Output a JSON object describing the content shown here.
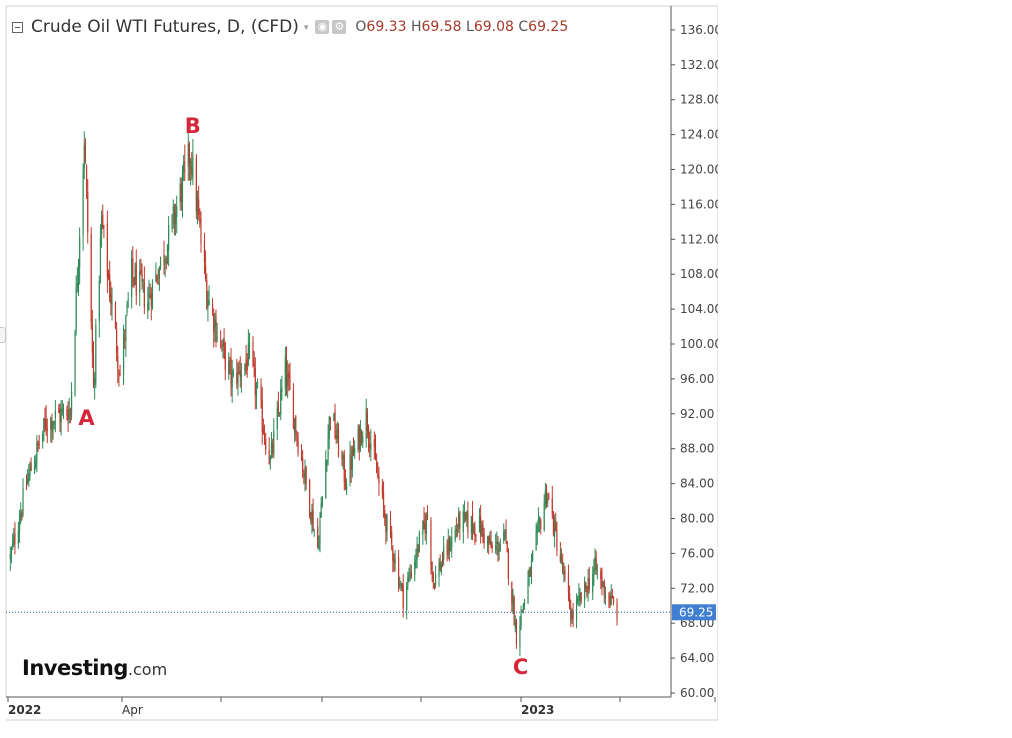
{
  "legend": {
    "title": "Crude Oil WTI Futures, D, (CFD)",
    "caret": "▾",
    "icons": [
      "settings-icon",
      "gear-icon"
    ],
    "open_label": "O",
    "open_value": "69.33",
    "high_label": "H",
    "high_value": "69.58",
    "low_label": "L",
    "low_value": "69.08",
    "close_label": "C",
    "close_value": "69.25"
  },
  "logo": {
    "brand": "Investing",
    "tld": ".com"
  },
  "annotations": [
    {
      "text": "A",
      "x": "2022-03-09",
      "y": 91.5
    },
    {
      "text": "B",
      "x": "2022-06-09",
      "y": 125.0
    },
    {
      "text": "C",
      "x": "2023-03-20",
      "y": 63.0
    }
  ],
  "colors": {
    "up": "#2e8b57",
    "down": "#c0392b",
    "last_price_line": "#1e4f9c",
    "price_badge": "#3f7ed0",
    "annotation": "#d6263a"
  },
  "chart_data": {
    "type": "candlestick",
    "instrument": "Crude Oil WTI Futures",
    "interval": "D",
    "ylim": [
      60,
      137
    ],
    "y_ticks": [
      "136.00",
      "132.00",
      "128.00",
      "124.00",
      "120.00",
      "116.00",
      "112.00",
      "108.00",
      "104.00",
      "100.00",
      "96.00",
      "92.00",
      "88.00",
      "84.00",
      "80.00",
      "76.00",
      "72.00",
      "68.00",
      "64.00",
      "60.00"
    ],
    "x_ticks": [
      "2022",
      "Apr",
      "",
      "",
      "",
      "2023",
      "",
      ""
    ],
    "x_range": [
      "2022-01-01",
      "2023-06-12"
    ],
    "last_price": 69.25,
    "last_price_label": "69.25",
    "grid": false,
    "series": [
      {
        "x": "2022-01-03",
        "y": 75.5
      },
      {
        "x": "2022-01-18",
        "y": 84.5
      },
      {
        "x": "2022-02-03",
        "y": 91.0
      },
      {
        "x": "2022-02-24",
        "y": 92.5
      },
      {
        "x": "2022-03-08",
        "y": 123.7
      },
      {
        "x": "2022-03-16",
        "y": 95.0
      },
      {
        "x": "2022-03-23",
        "y": 114.0
      },
      {
        "x": "2022-04-08",
        "y": 96.5
      },
      {
        "x": "2022-04-18",
        "y": 108.0
      },
      {
        "x": "2022-05-02",
        "y": 105.0
      },
      {
        "x": "2022-05-20",
        "y": 112.0
      },
      {
        "x": "2022-06-08",
        "y": 122.0
      },
      {
        "x": "2022-06-22",
        "y": 106.0
      },
      {
        "x": "2022-07-05",
        "y": 99.5
      },
      {
        "x": "2022-07-14",
        "y": 95.8
      },
      {
        "x": "2022-07-29",
        "y": 98.5
      },
      {
        "x": "2022-08-16",
        "y": 86.5
      },
      {
        "x": "2022-08-29",
        "y": 97.0
      },
      {
        "x": "2022-09-26",
        "y": 76.7
      },
      {
        "x": "2022-10-07",
        "y": 92.5
      },
      {
        "x": "2022-10-20",
        "y": 84.5
      },
      {
        "x": "2022-11-07",
        "y": 91.8
      },
      {
        "x": "2022-11-22",
        "y": 80.9
      },
      {
        "x": "2022-12-09",
        "y": 71.0
      },
      {
        "x": "2022-12-30",
        "y": 80.3
      },
      {
        "x": "2023-01-04",
        "y": 72.8
      },
      {
        "x": "2023-01-27",
        "y": 79.7
      },
      {
        "x": "2023-02-13",
        "y": 79.1
      },
      {
        "x": "2023-02-24",
        "y": 76.3
      },
      {
        "x": "2023-03-07",
        "y": 77.6
      },
      {
        "x": "2023-03-17",
        "y": 66.7
      },
      {
        "x": "2023-03-28",
        "y": 73.2
      },
      {
        "x": "2023-04-12",
        "y": 83.3
      },
      {
        "x": "2023-05-04",
        "y": 68.6
      },
      {
        "x": "2023-05-24",
        "y": 74.3
      },
      {
        "x": "2023-06-02",
        "y": 71.7
      },
      {
        "x": "2023-06-12",
        "y": 69.25
      }
    ]
  }
}
